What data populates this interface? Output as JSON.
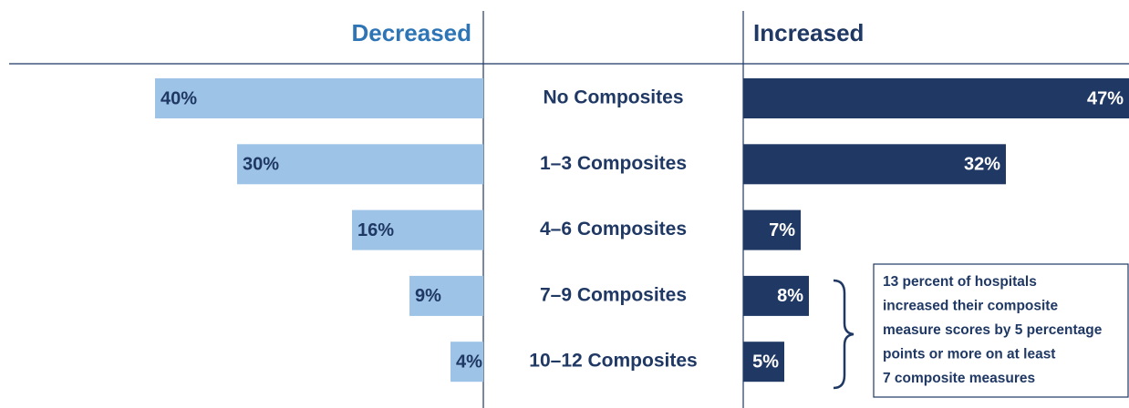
{
  "chart_data": {
    "type": "diverging_bar",
    "categories": [
      "No Composites",
      "1–3 Composites",
      "4–6 Composites",
      "7–9 Composites",
      "10–12 Composites"
    ],
    "series": [
      {
        "name": "Decreased",
        "color": "#9dc3e6",
        "label_color": "#2e75b6",
        "values": [
          40,
          30,
          16,
          9,
          4
        ],
        "value_labels": [
          "40%",
          "30%",
          "16%",
          "9%",
          "4%"
        ]
      },
      {
        "name": "Increased",
        "color": "#1f3864",
        "label_color": "#1f3864",
        "values": [
          47,
          32,
          7,
          8,
          5
        ],
        "value_labels": [
          "47%",
          "32%",
          "7%",
          "8%",
          "5%"
        ]
      }
    ],
    "annotation": [
      "13 percent of hospitals",
      "increased their composite",
      "measure scores by 5 percentage",
      "points or more on at least",
      "7 composite measures"
    ]
  }
}
